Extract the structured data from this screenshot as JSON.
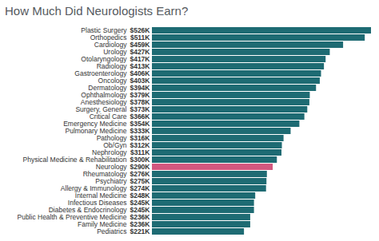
{
  "chart_data": {
    "type": "bar",
    "title": "How Much Did Neurologists Earn?",
    "orientation": "horizontal",
    "categories": [
      "Plastic Surgery",
      "Orthopedics",
      "Cardiology",
      "Urology",
      "Otolaryngology",
      "Radiology",
      "Gastroenterology",
      "Oncology",
      "Dermatology",
      "Ophthalmology",
      "Anesthesiology",
      "Surgery, General",
      "Critical Care",
      "Emergency Medicine",
      "Pulmonary Medicine",
      "Pathology",
      "Ob/Gyn",
      "Nephrology",
      "Physical Medicine & Rehabilitation",
      "Neurology",
      "Rheumatology",
      "Psychiatry",
      "Allergy & Immunology",
      "Internal Medicine",
      "Infectious Diseases",
      "Diabetes & Endocrinology",
      "Public Health & Preventive Medicine",
      "Family Medicine",
      "Pediatrics"
    ],
    "values": [
      526,
      511,
      459,
      427,
      417,
      413,
      406,
      403,
      394,
      379,
      378,
      373,
      366,
      354,
      333,
      316,
      312,
      311,
      300,
      290,
      276,
      275,
      274,
      248,
      245,
      245,
      236,
      236,
      221
    ],
    "value_labels": [
      "$526K",
      "$511K",
      "$459K",
      "$427K",
      "$417K",
      "$413K",
      "$406K",
      "$403K",
      "$394K",
      "$379K",
      "$378K",
      "$373K",
      "$366K",
      "$354K",
      "$333K",
      "$316K",
      "$312K",
      "$311K",
      "$300K",
      "$290K",
      "$276K",
      "$275K",
      "$274K",
      "$248K",
      "$245K",
      "$245K",
      "$236K",
      "$236K",
      "$221K"
    ],
    "colors": [
      "#1e6b73",
      "#1e6b73",
      "#1e6b73",
      "#1e6b73",
      "#1e6b73",
      "#1e6b73",
      "#1e6b73",
      "#1e6b73",
      "#1e6b73",
      "#1e6b73",
      "#1e6b73",
      "#1e6b73",
      "#1e6b73",
      "#1e6b73",
      "#1e6b73",
      "#1e6b73",
      "#1e6b73",
      "#1e6b73",
      "#1e6b73",
      "#d2587f",
      "#1e6b73",
      "#1e6b73",
      "#1e6b73",
      "#1e6b73",
      "#1e6b73",
      "#1e6b73",
      "#1e6b73",
      "#1e6b73",
      "#1e6b73"
    ],
    "xlim": [
      0,
      526
    ],
    "data_labels": true,
    "tick_labels": false,
    "grid": false
  }
}
